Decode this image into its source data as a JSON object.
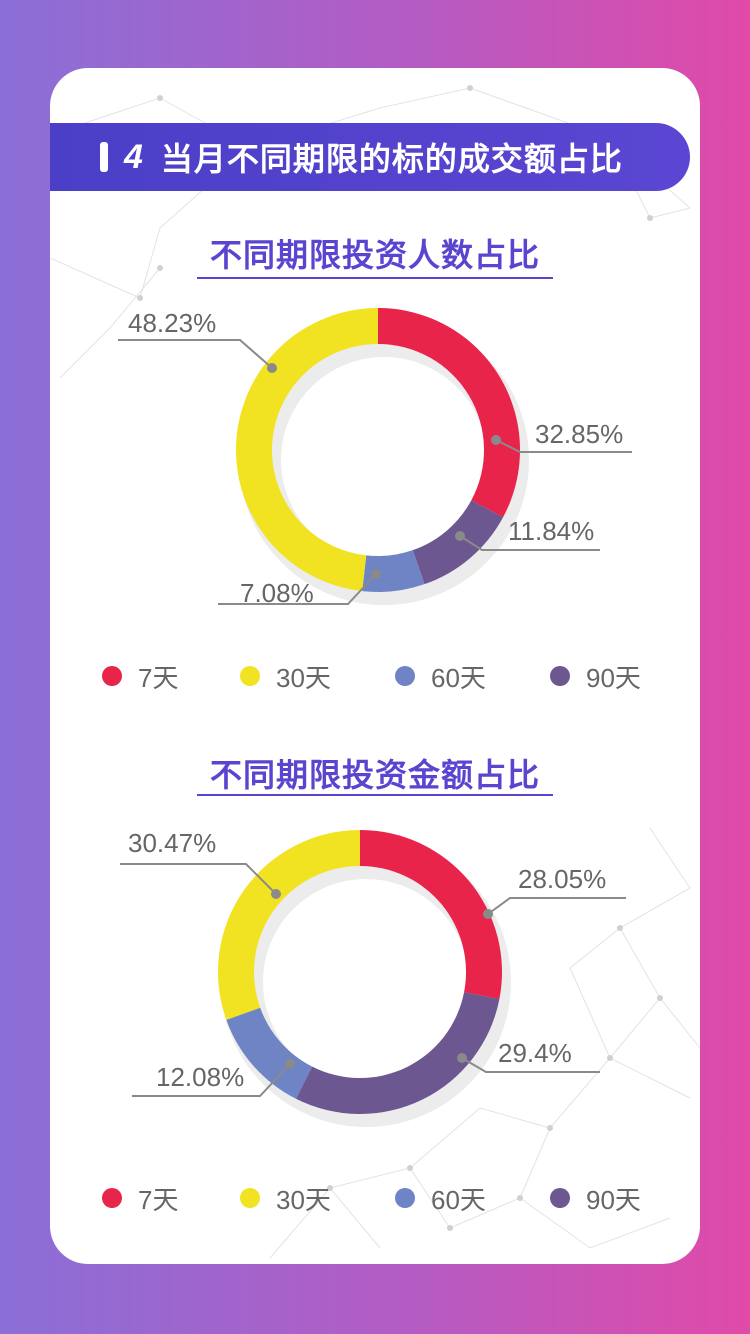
{
  "header": {
    "number": "4",
    "title": "当月不同期限的标的成交额占比"
  },
  "colors": {
    "7天": "#e8244b",
    "30天": "#f1e321",
    "60天": "#6f84c4",
    "90天": "#6c5790"
  },
  "chart_data": [
    {
      "type": "pie",
      "title": "不同期限投资人数占比",
      "categories": [
        "7天",
        "30天",
        "60天",
        "90天"
      ],
      "values": [
        32.85,
        48.23,
        7.08,
        11.84
      ],
      "labels": [
        "32.85%",
        "48.23%",
        "7.08%",
        "11.84%"
      ],
      "slice_order": [
        "7天",
        "90天",
        "60天",
        "30天"
      ],
      "legend": "bottom"
    },
    {
      "type": "pie",
      "title": "不同期限投资金额占比",
      "categories": [
        "7天",
        "30天",
        "60天",
        "90天"
      ],
      "values": [
        28.05,
        30.47,
        12.08,
        29.4
      ],
      "labels": [
        "28.05%",
        "30.47%",
        "12.08%",
        "29.4%"
      ],
      "slice_order": [
        "7天",
        "90天",
        "60天",
        "30天"
      ],
      "legend": "bottom"
    }
  ]
}
